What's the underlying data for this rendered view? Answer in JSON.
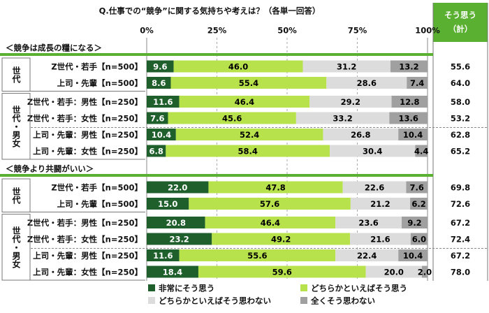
{
  "chart_data": {
    "type": "bar",
    "orientation": "horizontal",
    "stacked": true,
    "title": "Q.仕事での“競争”に関する気持ちや考えは？（各単一回答）",
    "total_title": [
      "そう思う",
      "（計）"
    ],
    "xlim": [
      0,
      100
    ],
    "xticks": [
      {
        "value": 0,
        "label": "0%"
      },
      {
        "value": 25,
        "label": "25%"
      },
      {
        "value": 50,
        "label": "50%"
      },
      {
        "value": 75,
        "label": "75%"
      },
      {
        "value": 100,
        "label": "100%"
      }
    ],
    "grid": true,
    "sections": [
      {
        "title": "＜競争は成長の糧になる＞",
        "groups": [
          {
            "label": "世代",
            "categories": [
              "Z世代・若手【n=500】",
              "上司・先輩【n=500】"
            ]
          },
          {
            "label": "世代・男女",
            "categories": [
              "Z世代・若手：男性【n=250】",
              "Z世代・若手：女性【n=250】",
              "上司・先輩：男性【n=250】",
              "上司・先輩：女性【n=250】"
            ]
          }
        ]
      },
      {
        "title": "＜競争より共闘がいい＞",
        "groups": [
          {
            "label": "世代",
            "categories": [
              "Z世代・若手【n=500】",
              "上司・先輩【n=500】"
            ]
          },
          {
            "label": "世代・男女",
            "categories": [
              "Z世代・若手：男性【n=250】",
              "Z世代・若手：女性【n=250】",
              "上司・先輩：男性【n=250】",
              "上司・先輩：女性【n=250】"
            ]
          }
        ]
      }
    ],
    "series": [
      {
        "name": "非常にそう思う",
        "color": "#1e5f2b",
        "text_color": "#ffffff",
        "values": [
          9.6,
          8.6,
          11.6,
          7.6,
          10.4,
          6.8,
          22.0,
          15.0,
          20.8,
          23.2,
          11.6,
          18.4
        ],
        "value_labels": [
          "9.6",
          "8.6",
          "11.6",
          "7.6",
          "10.4",
          "6.8",
          "22.0",
          "15.0",
          "20.8",
          "23.2",
          "11.6",
          "18.4"
        ]
      },
      {
        "name": "どちらかといえばそう思う",
        "color": "#b7e24b",
        "text_color": "#000000",
        "values": [
          46.0,
          55.4,
          46.4,
          45.6,
          52.4,
          58.4,
          47.8,
          57.6,
          46.4,
          49.2,
          55.6,
          59.6
        ],
        "value_labels": [
          "46.0",
          "55.4",
          "46.4",
          "45.6",
          "52.4",
          "58.4",
          "47.8",
          "57.6",
          "46.4",
          "49.2",
          "55.6",
          "59.6"
        ]
      },
      {
        "name": "どちらかといえばそう思わない",
        "color": "#dcdcdc",
        "text_color": "#000000",
        "values": [
          31.2,
          28.6,
          29.2,
          33.2,
          26.8,
          30.4,
          22.6,
          21.2,
          23.6,
          21.6,
          22.4,
          20.0
        ],
        "value_labels": [
          "31.2",
          "28.6",
          "29.2",
          "33.2",
          "26.8",
          "30.4",
          "22.6",
          "21.2",
          "23.6",
          "21.6",
          "22.4",
          "20.0"
        ]
      },
      {
        "name": "全くそう思わない",
        "color": "#a0a0a0",
        "text_color": "#000000",
        "values": [
          13.2,
          7.4,
          12.8,
          13.6,
          10.4,
          4.4,
          7.6,
          6.2,
          9.2,
          6.0,
          10.4,
          2.0
        ],
        "value_labels": [
          "13.2",
          "7.4",
          "12.8",
          "13.6",
          "10.4",
          "4.4",
          "7.6",
          "6.2",
          "9.2",
          "6.0",
          "10.4",
          "2.0"
        ]
      }
    ],
    "totals": {
      "values": [
        55.6,
        64.0,
        58.0,
        53.2,
        62.8,
        65.2,
        69.8,
        72.6,
        67.2,
        72.4,
        67.2,
        78.0
      ],
      "value_labels": [
        "55.6",
        "64.0",
        "58.0",
        "53.2",
        "62.8",
        "65.2",
        "69.8",
        "72.6",
        "67.2",
        "72.4",
        "67.2",
        "78.0"
      ]
    }
  }
}
